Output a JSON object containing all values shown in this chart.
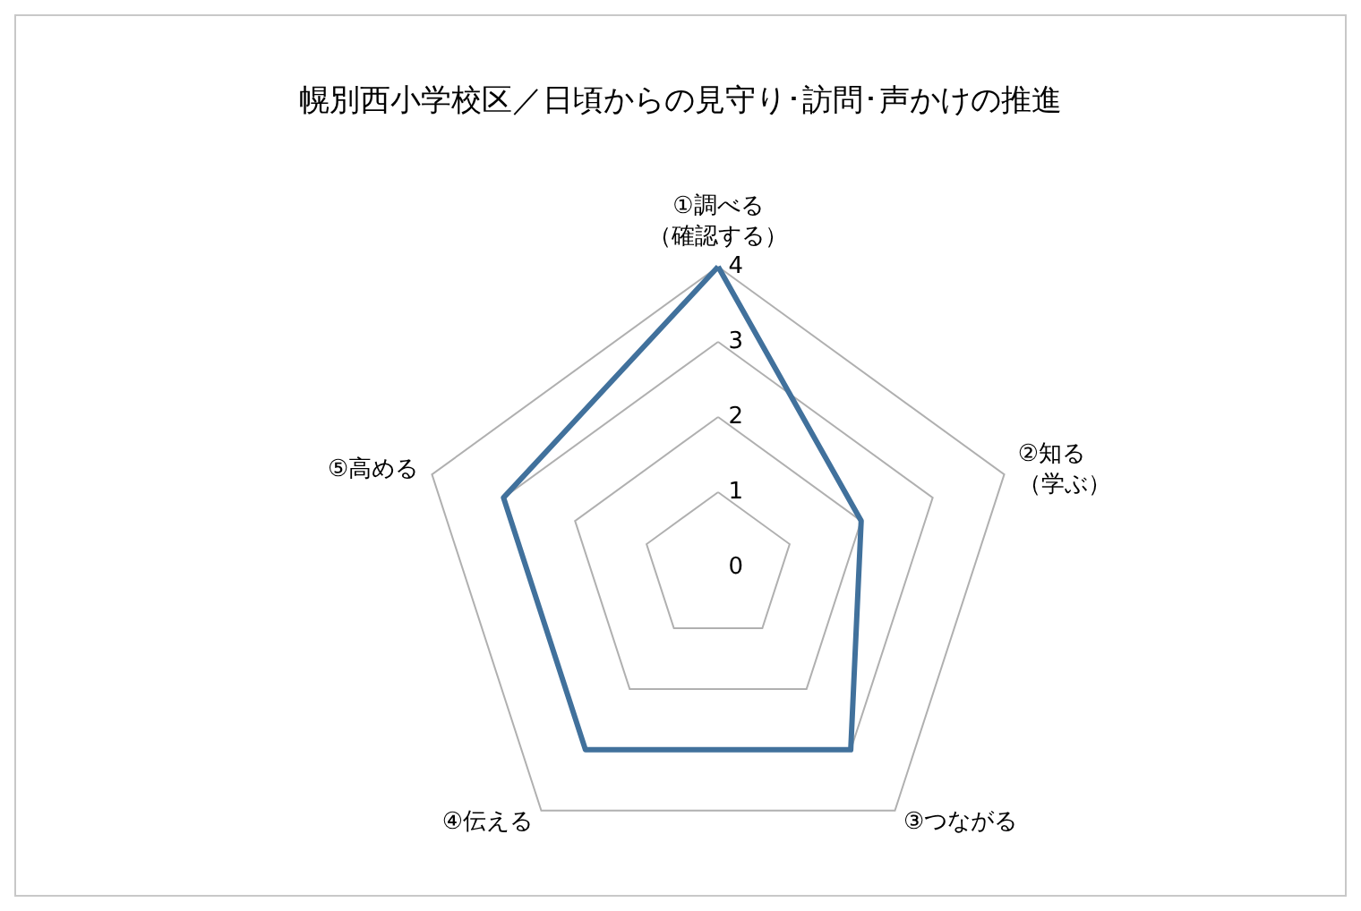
{
  "chart_data": {
    "type": "radar",
    "title": "幌別西小学校区／日頃からの見守り･訪問･声かけの推進",
    "categories": [
      "①調べる（確認する）",
      "②知る（学ぶ）",
      "③つながる",
      "④伝える",
      "⑤高める"
    ],
    "series": [
      {
        "color": "#41719c",
        "values": [
          4,
          2,
          3,
          3,
          3
        ]
      }
    ],
    "ylim": [
      0,
      4
    ],
    "yticks": [
      0,
      1,
      2,
      3,
      4
    ],
    "grid": true,
    "legend": false,
    "marker": "none",
    "line_style": "solid"
  }
}
